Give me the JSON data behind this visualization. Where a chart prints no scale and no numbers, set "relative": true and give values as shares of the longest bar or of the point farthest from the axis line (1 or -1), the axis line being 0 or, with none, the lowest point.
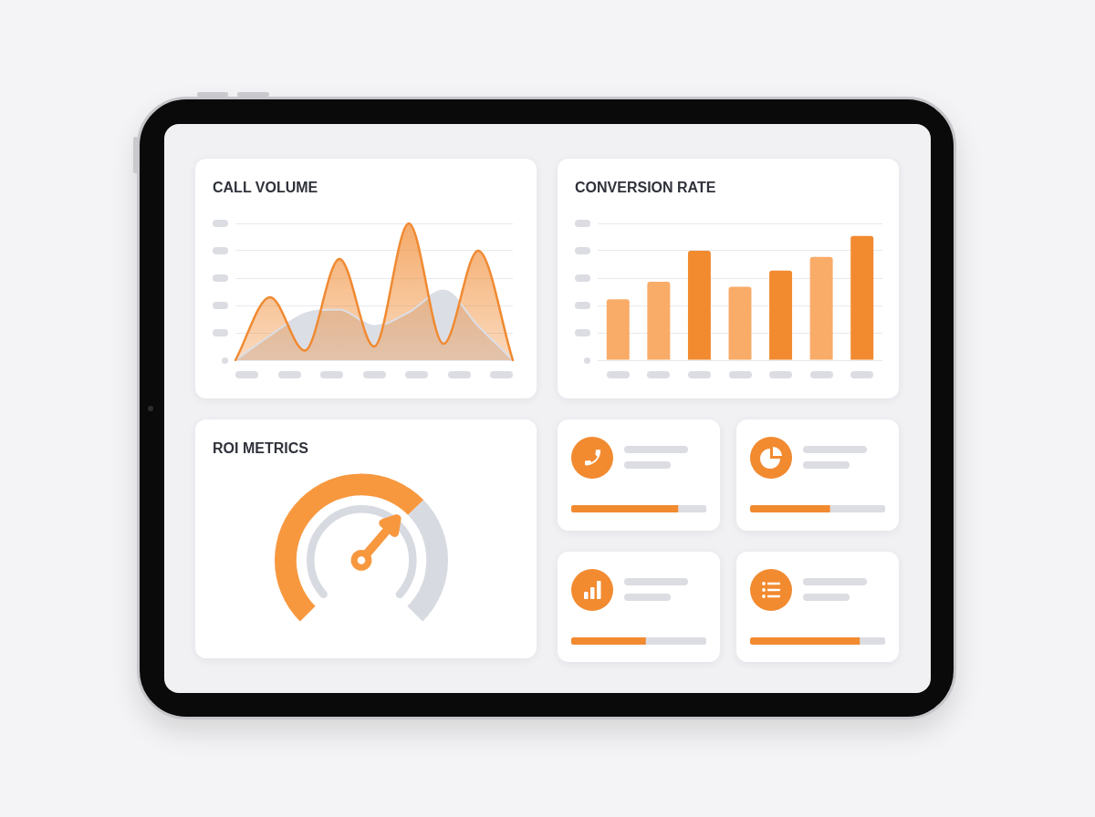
{
  "chart_data": [
    {
      "type": "area",
      "title": "CALL VOLUME",
      "relative": true,
      "categories": [
        null,
        null,
        null,
        null,
        null,
        null,
        null,
        null,
        null
      ],
      "series": [
        {
          "color": "#f08a32",
          "values": [
            0,
            0.46,
            0.07,
            0.74,
            0.1,
            1,
            0.12,
            0.8,
            0
          ]
        },
        {
          "color": "#dcdee5",
          "values": [
            0,
            0.18,
            0.34,
            0.37,
            0.25,
            0.35,
            0.51,
            0.25,
            0
          ]
        }
      ],
      "grid": "y"
    },
    {
      "type": "bar",
      "title": "CONVERSION RATE",
      "relative": true,
      "categories": [
        null,
        null,
        null,
        null,
        null,
        null,
        null
      ],
      "values": [
        0.49,
        0.63,
        0.88,
        0.59,
        0.72,
        0.83,
        1
      ],
      "colors": [
        "#f9ab68",
        "#f9ab68",
        "#f28a30",
        "#f9ab68",
        "#f28a30",
        "#f9ab68",
        "#f28a30"
      ],
      "grid": "y"
    },
    {
      "type": "donut",
      "title": "ROI METRICS",
      "categories": [
        null,
        null
      ],
      "values": [
        67,
        33
      ],
      "colors": [
        "#f7983f",
        "#d8dae1"
      ],
      "needle": null
    },
    {
      "type": "bar",
      "orientation": "horizontal",
      "stacked": true,
      "relative": true,
      "categories": [
        null
      ],
      "series": [
        {
          "color": "#f28a30",
          "values": [
            0.79
          ]
        },
        {
          "color": "#dcdde3",
          "values": [
            0.21
          ]
        }
      ]
    },
    {
      "type": "bar",
      "orientation": "horizontal",
      "stacked": true,
      "relative": true,
      "categories": [
        null
      ],
      "series": [
        {
          "color": "#f28a30",
          "values": [
            0.59
          ]
        },
        {
          "color": "#dcdde3",
          "values": [
            0.41
          ]
        }
      ]
    },
    {
      "type": "bar",
      "orientation": "horizontal",
      "stacked": true,
      "relative": true,
      "categories": [
        null
      ],
      "series": [
        {
          "color": "#f28a30",
          "values": [
            0.55
          ]
        },
        {
          "color": "#dcdde3",
          "values": [
            0.45
          ]
        }
      ]
    },
    {
      "type": "bar",
      "orientation": "horizontal",
      "stacked": true,
      "relative": true,
      "categories": [
        null
      ],
      "series": [
        {
          "color": "#f28a30",
          "values": [
            0.81
          ]
        },
        {
          "color": "#dcdde3",
          "values": [
            0.19
          ]
        }
      ]
    }
  ]
}
